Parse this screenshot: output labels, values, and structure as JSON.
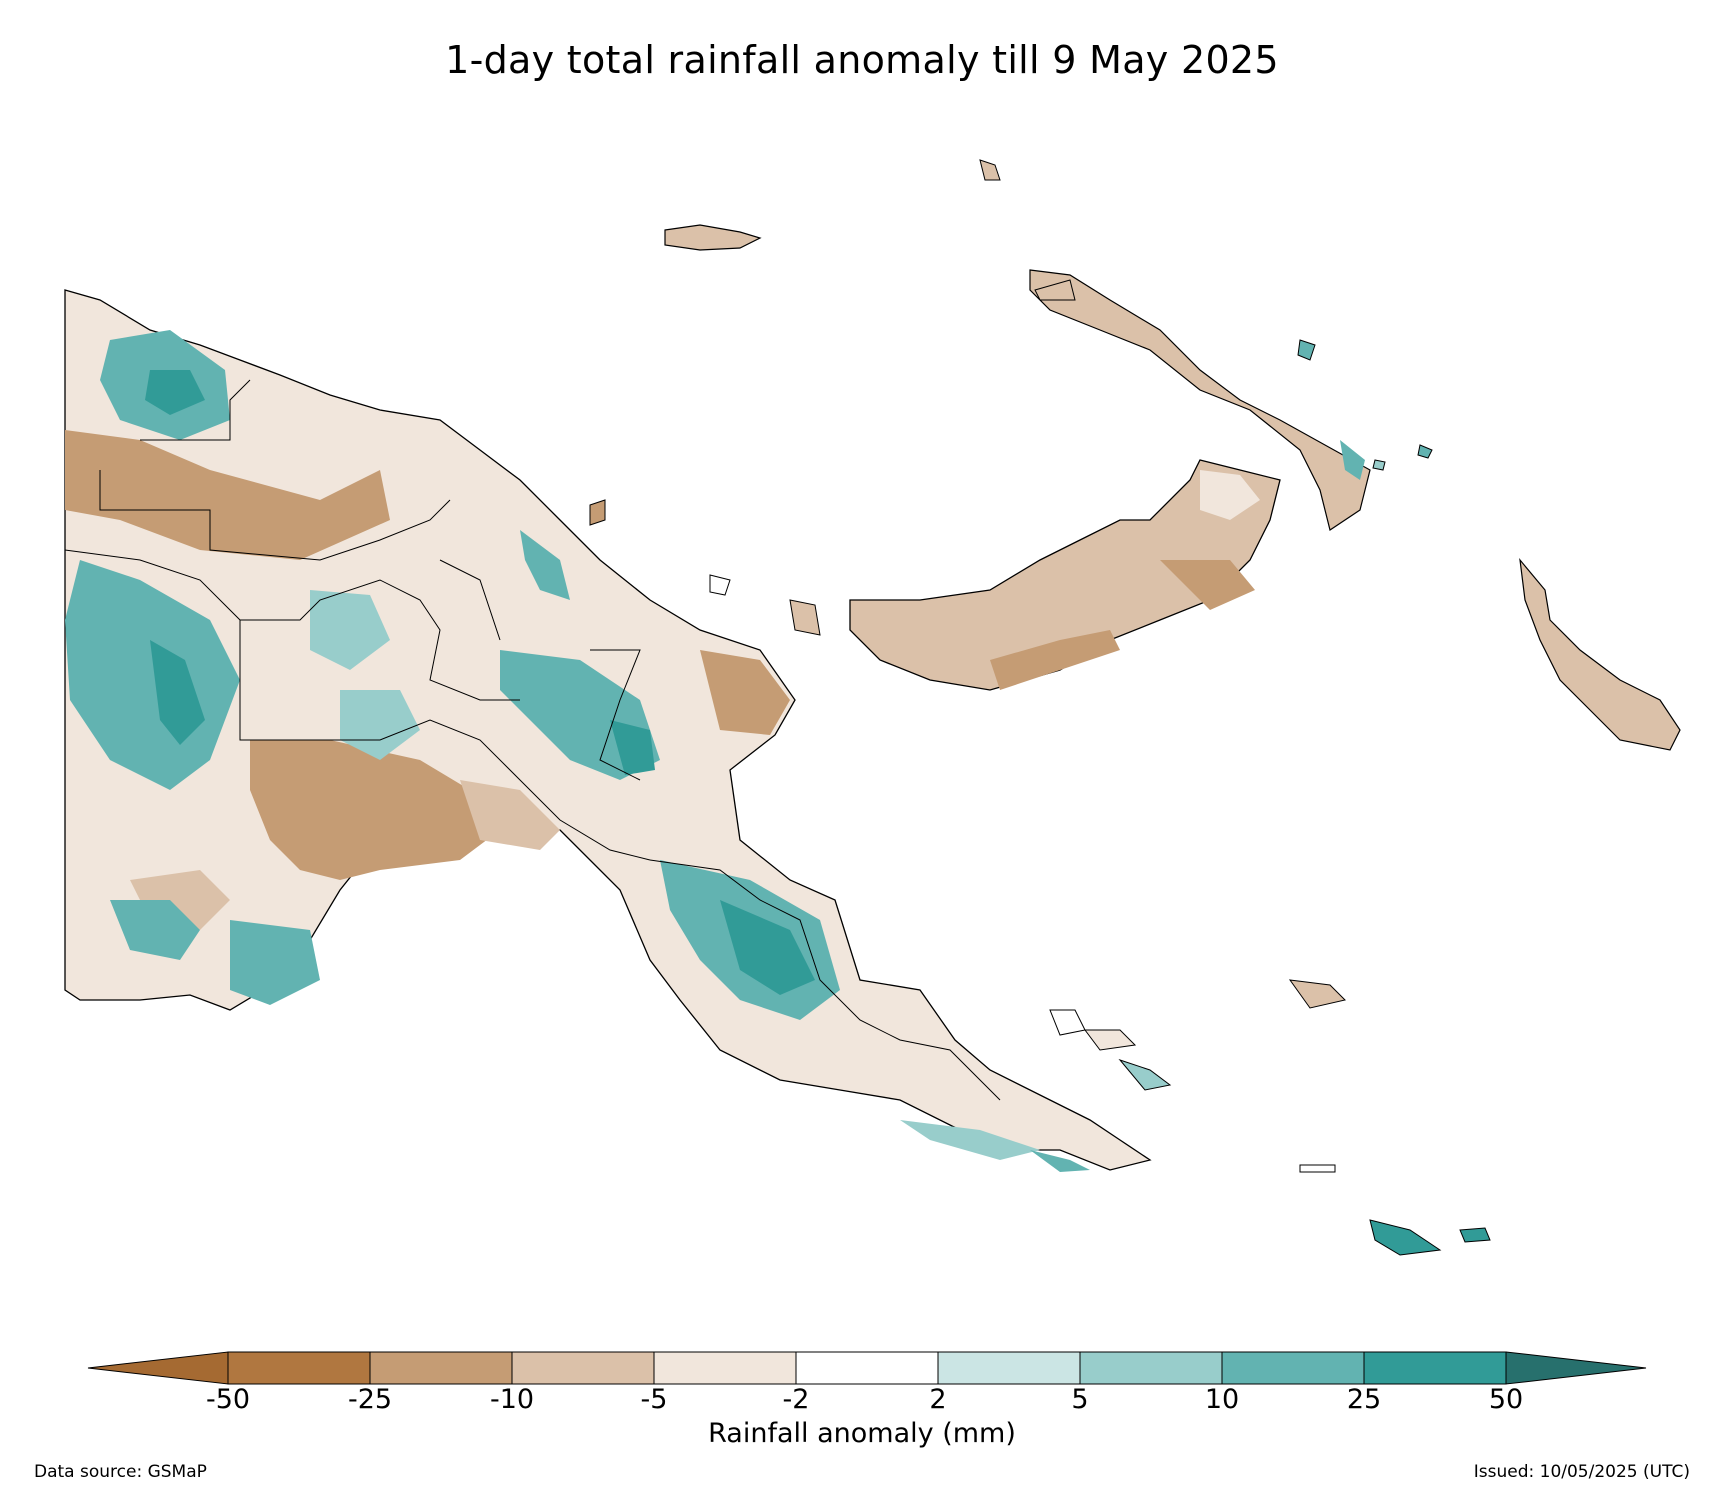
{
  "title": "1-day total rainfall anomaly till 9 May 2025",
  "map": {
    "region": "Papua New Guinea",
    "palette": {
      "lt_-50": "#a56a32",
      "-50_-25": "#b07740",
      "-25_-10": "#c59c74",
      "-10_-5": "#dbc1a9",
      "-5_-2": "#f1e6dc",
      "-2_2": "#ffffff",
      "2_5": "#cbe5e4",
      "5_10": "#98cdcb",
      "10_25": "#62b3b1",
      "25_50": "#319b97",
      "gt_50": "#27706d"
    },
    "coastline_color": "#000000"
  },
  "colorbar": {
    "label": "Rainfall anomaly (mm)",
    "ticks": [
      "-50",
      "-25",
      "-10",
      "-5",
      "-2",
      "2",
      "5",
      "10",
      "25",
      "50"
    ],
    "colors": [
      "#a56a32",
      "#b07740",
      "#c59c74",
      "#dbc1a9",
      "#f1e6dc",
      "#ffffff",
      "#cbe5e4",
      "#98cdcb",
      "#62b3b1",
      "#319b97",
      "#27706d"
    ],
    "extend": "both"
  },
  "footer": {
    "source": "Data source: GSMaP",
    "issued": "Issued: 10/05/2025 (UTC)"
  }
}
